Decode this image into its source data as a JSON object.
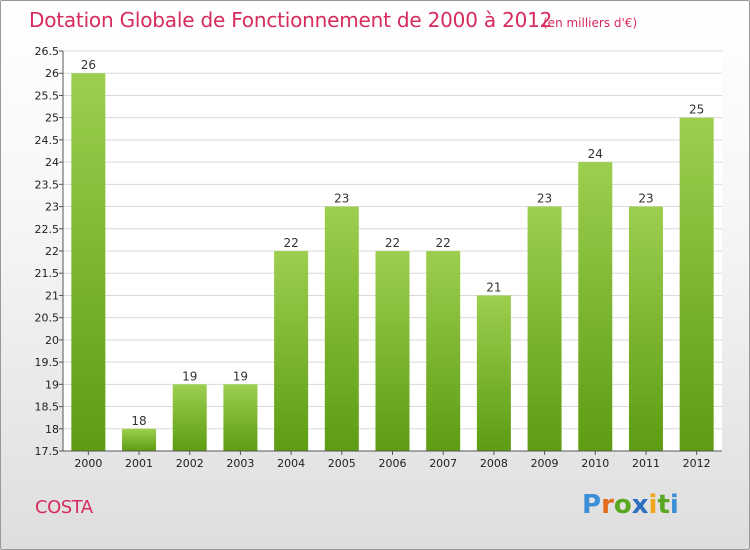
{
  "title": "Dotation Globale de Fonctionnement de 2000 à 2012",
  "unit_note": "(en milliers d'€)",
  "commune": "COSTA",
  "logo": {
    "text": "Proxiti",
    "letters": [
      "P",
      "r",
      "o",
      "x",
      "i",
      "t",
      "i"
    ]
  },
  "colors": {
    "title": "#d62b5c",
    "bar_top": "#9ccf4e",
    "bar_bottom": "#5d9c13",
    "grid": "#d9d9d9"
  },
  "chart_data": {
    "type": "bar",
    "categories": [
      "2000",
      "2001",
      "2002",
      "2003",
      "2004",
      "2005",
      "2006",
      "2007",
      "2008",
      "2009",
      "2010",
      "2011",
      "2012"
    ],
    "values": [
      26,
      18,
      19,
      19,
      22,
      23,
      22,
      22,
      21,
      23,
      24,
      23,
      25
    ],
    "value_labels": [
      "26",
      "18",
      "19",
      "19",
      "22",
      "23",
      "22",
      "22",
      "21",
      "23",
      "24",
      "23",
      "25"
    ],
    "ylim": [
      17.5,
      26.5
    ],
    "yticks": [
      "17.5",
      "18",
      "18.5",
      "19",
      "19.5",
      "20",
      "20.5",
      "21",
      "21.5",
      "22",
      "22.5",
      "23",
      "23.5",
      "24",
      "24.5",
      "25",
      "25.5",
      "26",
      "26.5"
    ],
    "grid": true,
    "xlabel": "",
    "ylabel": ""
  }
}
